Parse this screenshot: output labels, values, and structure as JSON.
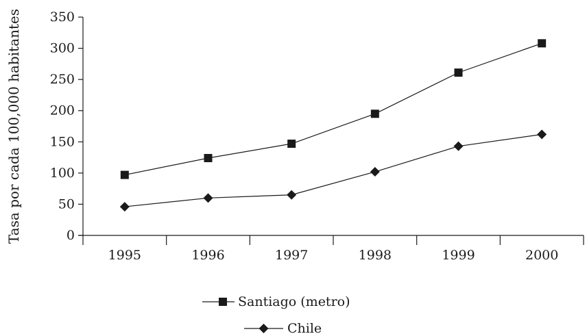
{
  "chart_data": {
    "type": "line",
    "title": "",
    "xlabel": "",
    "ylabel": "Tasa por cada 100,000 habitantes",
    "x": [
      "1995",
      "1996",
      "1997",
      "1998",
      "1999",
      "2000"
    ],
    "ylim": [
      0,
      350
    ],
    "yticks": [
      0,
      50,
      100,
      150,
      200,
      250,
      300,
      350
    ],
    "grid": false,
    "legend_position": "bottom-center",
    "series": [
      {
        "name": "Santiago (metro)",
        "marker": "square",
        "values": [
          97,
          124,
          147,
          195,
          261,
          308
        ]
      },
      {
        "name": "Chile",
        "marker": "diamond",
        "values": [
          46,
          60,
          65,
          102,
          143,
          162
        ]
      }
    ]
  }
}
